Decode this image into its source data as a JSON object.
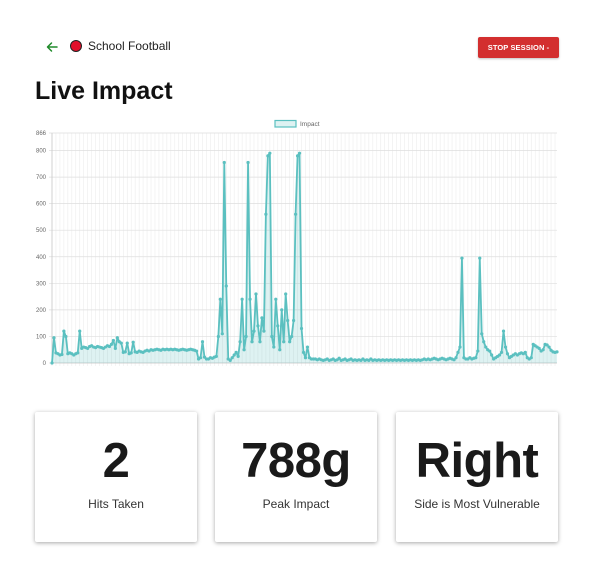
{
  "header": {
    "back_icon": "arrow-left-icon",
    "session_name": "School Football",
    "status_color": "#e0102a",
    "stop_label": "STOP SESSION -",
    "stop_color": "#d32f2f"
  },
  "page": {
    "title": "Live Impact"
  },
  "chart_data": {
    "type": "line",
    "title": "",
    "xlabel": "",
    "ylabel": "",
    "ylim": [
      0,
      866
    ],
    "y_ticks": [
      0,
      100,
      200,
      300,
      400,
      500,
      600,
      700,
      800,
      866
    ],
    "legend": "top-center",
    "grid": true,
    "series": [
      {
        "name": "Impact",
        "color": "#5bc0c0",
        "fill": "rgba(91,192,192,0.2)",
        "values": [
          0,
          95,
          38,
          35,
          30,
          32,
          120,
          100,
          35,
          38,
          35,
          30,
          35,
          38,
          120,
          55,
          60,
          58,
          55,
          62,
          65,
          60,
          58,
          62,
          60,
          58,
          55,
          60,
          65,
          62,
          70,
          85,
          55,
          95,
          80,
          75,
          40,
          42,
          75,
          35,
          38,
          78,
          42,
          40,
          45,
          42,
          40,
          45,
          48,
          45,
          50,
          48,
          50,
          52,
          50,
          48,
          52,
          50,
          52,
          50,
          52,
          50,
          52,
          50,
          48,
          50,
          52,
          50,
          48,
          50,
          52,
          50,
          48,
          45,
          15,
          20,
          80,
          22,
          15,
          15,
          20,
          18,
          22,
          25,
          100,
          240,
          110,
          755,
          290,
          15,
          10,
          20,
          30,
          40,
          25,
          80,
          240,
          50,
          100,
          755,
          240,
          80,
          120,
          260,
          140,
          80,
          170,
          120,
          560,
          780,
          790,
          100,
          60,
          240,
          140,
          50,
          200,
          80,
          260,
          160,
          80,
          100,
          160,
          560,
          780,
          790,
          130,
          40,
          20,
          60,
          20,
          15,
          15,
          15,
          12,
          15,
          12,
          10,
          12,
          15,
          10,
          12,
          15,
          10,
          12,
          18,
          10,
          12,
          15,
          10,
          12,
          15,
          10,
          12,
          10,
          12,
          10,
          15,
          10,
          12,
          10,
          15,
          10,
          12,
          10,
          12,
          10,
          12,
          10,
          12,
          10,
          12,
          10,
          12,
          10,
          12,
          10,
          12,
          10,
          12,
          10,
          12,
          10,
          12,
          10,
          12,
          10,
          12,
          15,
          12,
          15,
          12,
          15,
          18,
          15,
          12,
          15,
          18,
          15,
          12,
          15,
          18,
          15,
          12,
          20,
          40,
          60,
          395,
          20,
          15,
          15,
          20,
          15,
          18,
          20,
          45,
          395,
          110,
          80,
          60,
          50,
          45,
          30,
          15,
          20,
          25,
          30,
          40,
          120,
          60,
          35,
          20,
          25,
          30,
          35,
          30,
          35,
          38,
          35,
          40,
          20,
          15,
          20,
          70,
          65,
          60,
          55,
          45,
          50,
          70,
          68,
          60,
          48,
          42,
          40,
          42
        ]
      }
    ]
  },
  "stats": [
    {
      "value": "2",
      "label": "Hits Taken"
    },
    {
      "value": "788g",
      "label": "Peak Impact"
    },
    {
      "value": "Right",
      "label": "Side is Most Vulnerable"
    }
  ]
}
